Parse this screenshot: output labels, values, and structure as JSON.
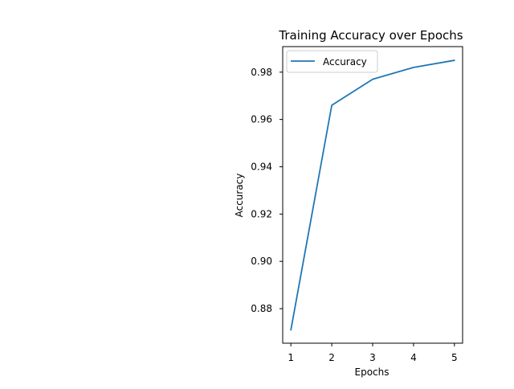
{
  "chart_data": {
    "type": "line",
    "title": "Training Accuracy over Epochs",
    "xlabel": "Epochs",
    "ylabel": "Accuracy",
    "x": [
      1,
      2,
      3,
      4,
      5
    ],
    "xticks": [
      1,
      2,
      3,
      4,
      5
    ],
    "yticks": [
      0.88,
      0.9,
      0.92,
      0.94,
      0.96,
      0.98
    ],
    "xlim": [
      0.8,
      5.2
    ],
    "ylim": [
      0.8654,
      0.9908
    ],
    "grid": false,
    "legend_position": "top-left",
    "series": [
      {
        "name": "Accuracy",
        "color": "#1f77b4",
        "values": [
          0.871,
          0.966,
          0.977,
          0.982,
          0.985
        ]
      }
    ]
  }
}
